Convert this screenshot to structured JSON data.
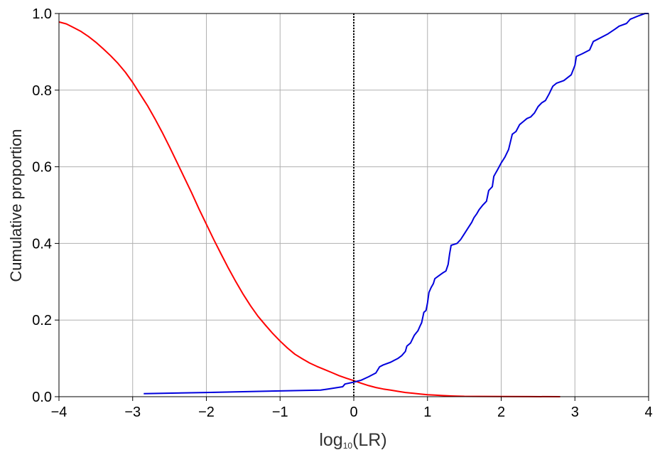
{
  "chart_data": {
    "type": "line",
    "xlabel": {
      "prefix": "log",
      "subscript": "10",
      "suffix": "(LR)"
    },
    "ylabel": "Cumulative proportion",
    "xlim": [
      -4,
      4
    ],
    "ylim": [
      0,
      1
    ],
    "xticks": [
      -4,
      -3,
      -2,
      -1,
      0,
      1,
      2,
      3,
      4
    ],
    "xtick_labels": [
      "−4",
      "−3",
      "−2",
      "−1",
      "0",
      "1",
      "2",
      "3",
      "4"
    ],
    "yticks": [
      0,
      0.2,
      0.4,
      0.6,
      0.8,
      1.0
    ],
    "ytick_labels": [
      "0.0",
      "0.2",
      "0.4",
      "0.6",
      "0.8",
      "1.0"
    ],
    "grid": true,
    "reference_line": {
      "x": 0,
      "style": "dotted",
      "color": "#000000"
    },
    "series": [
      {
        "color": "#ff0000",
        "points": [
          [
            -4.0,
            0.978
          ],
          [
            -3.9,
            0.973
          ],
          [
            -3.8,
            0.963
          ],
          [
            -3.7,
            0.953
          ],
          [
            -3.6,
            0.94
          ],
          [
            -3.5,
            0.925
          ],
          [
            -3.4,
            0.908
          ],
          [
            -3.3,
            0.89
          ],
          [
            -3.2,
            0.87
          ],
          [
            -3.1,
            0.847
          ],
          [
            -3.0,
            0.82
          ],
          [
            -2.9,
            0.79
          ],
          [
            -2.8,
            0.76
          ],
          [
            -2.7,
            0.726
          ],
          [
            -2.6,
            0.69
          ],
          [
            -2.5,
            0.652
          ],
          [
            -2.4,
            0.612
          ],
          [
            -2.3,
            0.572
          ],
          [
            -2.2,
            0.532
          ],
          [
            -2.1,
            0.49
          ],
          [
            -2.0,
            0.45
          ],
          [
            -1.9,
            0.41
          ],
          [
            -1.8,
            0.372
          ],
          [
            -1.7,
            0.335
          ],
          [
            -1.6,
            0.3
          ],
          [
            -1.5,
            0.267
          ],
          [
            -1.4,
            0.237
          ],
          [
            -1.3,
            0.21
          ],
          [
            -1.2,
            0.187
          ],
          [
            -1.1,
            0.165
          ],
          [
            -1.0,
            0.145
          ],
          [
            -0.9,
            0.127
          ],
          [
            -0.8,
            0.111
          ],
          [
            -0.7,
            0.099
          ],
          [
            -0.6,
            0.088
          ],
          [
            -0.5,
            0.079
          ],
          [
            -0.4,
            0.071
          ],
          [
            -0.3,
            0.063
          ],
          [
            -0.2,
            0.055
          ],
          [
            -0.1,
            0.048
          ],
          [
            0.0,
            0.042
          ],
          [
            0.1,
            0.035
          ],
          [
            0.2,
            0.029
          ],
          [
            0.3,
            0.024
          ],
          [
            0.4,
            0.02
          ],
          [
            0.5,
            0.017
          ],
          [
            0.6,
            0.014
          ],
          [
            0.7,
            0.011
          ],
          [
            0.8,
            0.009
          ],
          [
            0.9,
            0.007
          ],
          [
            1.0,
            0.005
          ],
          [
            1.1,
            0.004
          ],
          [
            1.2,
            0.003
          ],
          [
            1.3,
            0.002
          ],
          [
            1.4,
            0.0015
          ],
          [
            1.5,
            0.001
          ],
          [
            1.7,
            0.0007
          ],
          [
            2.0,
            0.0004
          ],
          [
            2.4,
            0.0002
          ],
          [
            2.8,
            0.0
          ]
        ]
      },
      {
        "color": "#0000dd",
        "points": [
          [
            -2.85,
            0.008
          ],
          [
            -2.0,
            0.011
          ],
          [
            -1.0,
            0.015
          ],
          [
            -0.45,
            0.017
          ],
          [
            -0.35,
            0.02
          ],
          [
            -0.15,
            0.026
          ],
          [
            -0.12,
            0.033
          ],
          [
            0.0,
            0.038
          ],
          [
            0.1,
            0.043
          ],
          [
            0.2,
            0.052
          ],
          [
            0.3,
            0.062
          ],
          [
            0.35,
            0.078
          ],
          [
            0.4,
            0.083
          ],
          [
            0.5,
            0.09
          ],
          [
            0.55,
            0.095
          ],
          [
            0.6,
            0.1
          ],
          [
            0.65,
            0.107
          ],
          [
            0.7,
            0.118
          ],
          [
            0.72,
            0.132
          ],
          [
            0.77,
            0.14
          ],
          [
            0.8,
            0.152
          ],
          [
            0.82,
            0.16
          ],
          [
            0.87,
            0.172
          ],
          [
            0.9,
            0.185
          ],
          [
            0.92,
            0.193
          ],
          [
            0.95,
            0.22
          ],
          [
            0.98,
            0.225
          ],
          [
            1.0,
            0.245
          ],
          [
            1.02,
            0.272
          ],
          [
            1.05,
            0.285
          ],
          [
            1.08,
            0.295
          ],
          [
            1.1,
            0.308
          ],
          [
            1.15,
            0.315
          ],
          [
            1.2,
            0.322
          ],
          [
            1.25,
            0.328
          ],
          [
            1.28,
            0.345
          ],
          [
            1.3,
            0.373
          ],
          [
            1.32,
            0.395
          ],
          [
            1.4,
            0.4
          ],
          [
            1.45,
            0.41
          ],
          [
            1.5,
            0.425
          ],
          [
            1.55,
            0.44
          ],
          [
            1.6,
            0.455
          ],
          [
            1.63,
            0.467
          ],
          [
            1.67,
            0.478
          ],
          [
            1.7,
            0.488
          ],
          [
            1.75,
            0.5
          ],
          [
            1.8,
            0.51
          ],
          [
            1.83,
            0.538
          ],
          [
            1.88,
            0.548
          ],
          [
            1.9,
            0.575
          ],
          [
            1.92,
            0.582
          ],
          [
            1.95,
            0.592
          ],
          [
            2.0,
            0.61
          ],
          [
            2.05,
            0.625
          ],
          [
            2.1,
            0.645
          ],
          [
            2.15,
            0.685
          ],
          [
            2.2,
            0.692
          ],
          [
            2.25,
            0.71
          ],
          [
            2.3,
            0.718
          ],
          [
            2.35,
            0.726
          ],
          [
            2.4,
            0.73
          ],
          [
            2.45,
            0.74
          ],
          [
            2.5,
            0.757
          ],
          [
            2.55,
            0.767
          ],
          [
            2.6,
            0.773
          ],
          [
            2.65,
            0.79
          ],
          [
            2.7,
            0.81
          ],
          [
            2.75,
            0.818
          ],
          [
            2.85,
            0.825
          ],
          [
            2.95,
            0.84
          ],
          [
            3.0,
            0.865
          ],
          [
            3.02,
            0.888
          ],
          [
            3.1,
            0.895
          ],
          [
            3.2,
            0.905
          ],
          [
            3.25,
            0.927
          ],
          [
            3.3,
            0.932
          ],
          [
            3.45,
            0.947
          ],
          [
            3.55,
            0.96
          ],
          [
            3.6,
            0.967
          ],
          [
            3.7,
            0.974
          ],
          [
            3.75,
            0.985
          ],
          [
            3.85,
            0.993
          ],
          [
            3.95,
            1.0
          ],
          [
            4.0,
            1.0
          ]
        ]
      }
    ]
  }
}
